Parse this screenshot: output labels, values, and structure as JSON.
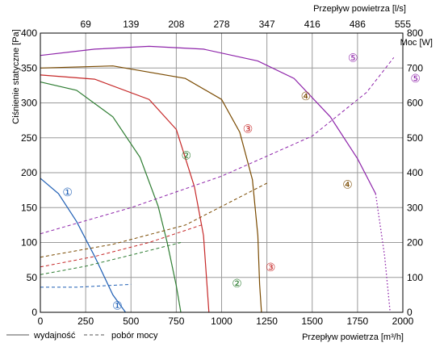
{
  "chart_data": {
    "type": "line",
    "x_axis": {
      "label": "Przepływ powietrza [m³/h]",
      "range": [
        0,
        2000
      ],
      "ticks": [
        "0",
        "250",
        "500",
        "750",
        "1000",
        "1250",
        "1500",
        "1750",
        "2000"
      ],
      "grid": true
    },
    "x_axis_top": {
      "label": "Przepływ powietrza [l/s]",
      "ticks": [
        "69",
        "139",
        "208",
        "278",
        "347",
        "416",
        "486",
        "555"
      ]
    },
    "y_axis_left": {
      "label": "Ciśnienie statyczne [Pa]",
      "range": [
        0,
        400
      ],
      "ticks": [
        "0",
        "50",
        "100",
        "150",
        "200",
        "250",
        "300",
        "350",
        "400"
      ],
      "grid": true
    },
    "y_axis_right": {
      "label": "Moc [W]",
      "range": [
        0,
        800
      ],
      "ticks": [
        "0",
        "100",
        "200",
        "300",
        "400",
        "500",
        "600",
        "700",
        "800"
      ]
    },
    "legend": {
      "position": "bottom-left",
      "solid_label": "wydajność",
      "dashed_label": "pobór mocy"
    },
    "series": [
      {
        "id": "1",
        "color": "#1f5fb5",
        "pressure": {
          "x": [
            0,
            100,
            200,
            300,
            400,
            470
          ],
          "y": [
            192,
            170,
            130,
            80,
            25,
            0
          ]
        },
        "power": {
          "x": [
            0,
            200,
            500
          ],
          "y": [
            72,
            72,
            80
          ]
        },
        "pressure_label": {
          "text": "①",
          "x": 150,
          "y": 172
        },
        "power_label": {
          "text": "①",
          "x": 425,
          "y": 20
        }
      },
      {
        "id": "2",
        "color": "#2e7d32",
        "pressure": {
          "x": [
            0,
            200,
            400,
            550,
            650,
            700,
            750,
            775
          ],
          "y": [
            330,
            318,
            280,
            222,
            152,
            100,
            38,
            0
          ]
        },
        "power": {
          "x": [
            0,
            250,
            500,
            775
          ],
          "y": [
            108,
            132,
            164,
            200
          ]
        },
        "pressure_label": {
          "text": "②",
          "x": 805,
          "y": 225
        },
        "power_label": {
          "text": "②",
          "x": 1085,
          "y": 83
        }
      },
      {
        "id": "3",
        "color": "#c62828",
        "pressure": {
          "x": [
            0,
            300,
            600,
            750,
            850,
            900,
            930
          ],
          "y": [
            340,
            334,
            305,
            262,
            180,
            110,
            0
          ]
        },
        "power": {
          "x": [
            0,
            300,
            600,
            900
          ],
          "y": [
            130,
            160,
            200,
            252
          ]
        },
        "pressure_label": {
          "text": "③",
          "x": 1145,
          "y": 263
        },
        "power_label": {
          "text": "③",
          "x": 1270,
          "y": 130
        }
      },
      {
        "id": "4",
        "color": "#7a4a00",
        "pressure": {
          "x": [
            0,
            400,
            800,
            1000,
            1100,
            1170,
            1200,
            1210,
            1220
          ],
          "y": [
            350,
            353,
            335,
            305,
            258,
            190,
            110,
            40,
            0
          ]
        },
        "power": {
          "x": [
            0,
            400,
            800,
            1250
          ],
          "y": [
            158,
            195,
            250,
            370
          ]
        },
        "pressure_label": {
          "text": "④",
          "x": 1465,
          "y": 310
        },
        "power_label": {
          "text": "④",
          "x": 1695,
          "y": 366
        }
      },
      {
        "id": "5",
        "color": "#8e24aa",
        "pressure": {
          "x": [
            0,
            300,
            600,
            900,
            1200,
            1400,
            1600,
            1750,
            1850
          ],
          "y": [
            368,
            377,
            381,
            377,
            360,
            335,
            280,
            220,
            170
          ]
        },
        "pressure_tail": {
          "x": [
            1850,
            1900,
            1930
          ],
          "y": [
            170,
            80,
            0
          ]
        },
        "power": {
          "x": [
            0,
            500,
            1000,
            1500,
            1800,
            1950
          ],
          "y": [
            225,
            300,
            390,
            505,
            630,
            730
          ]
        },
        "pressure_label": {
          "text": "⑤",
          "x": 1725,
          "y": 365
        },
        "power_label": {
          "text": "⑤",
          "x": 2070,
          "y": 670
        }
      }
    ]
  }
}
